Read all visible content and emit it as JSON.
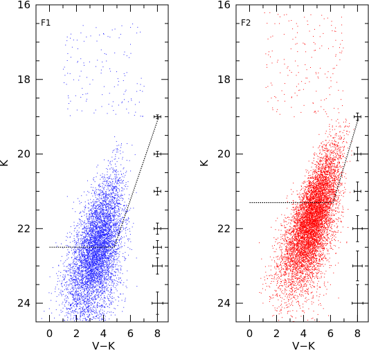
{
  "chart_data": [
    {
      "type": "scatter",
      "panel_label": "F1",
      "xlabel": "V−K",
      "ylabel": "K",
      "xlim": [
        -1.0,
        8.8
      ],
      "ylim": [
        16.0,
        24.5
      ],
      "y_inverted": true,
      "xticks": [
        0,
        2,
        4,
        6,
        8
      ],
      "yticks": [
        16,
        18,
        20,
        22,
        24
      ],
      "grid": false,
      "point_color": "#2020ff",
      "point_density": {
        "approx_points": 6000,
        "bulk_center": {
          "x": 3.8,
          "y": 22.6
        },
        "ridge": [
          {
            "y": 19.0,
            "x": 6.0
          },
          {
            "y": 20.0,
            "x": 5.3
          },
          {
            "y": 21.0,
            "x": 4.6
          },
          {
            "y": 22.0,
            "x": 4.0
          },
          {
            "y": 23.0,
            "x": 3.4
          },
          {
            "y": 24.0,
            "x": 2.9
          }
        ],
        "sparse_bright_stars_y_range": [
          16.5,
          19.0
        ]
      },
      "limit_line": {
        "style": "dotted",
        "points": [
          {
            "x": 0.0,
            "y": 22.5
          },
          {
            "x": 4.8,
            "y": 22.5
          },
          {
            "x": 8.1,
            "y": 19.0
          }
        ]
      },
      "error_bars": [
        {
          "x": 8.0,
          "y": 19.0,
          "xerr": 0.25,
          "yerr": 0.05
        },
        {
          "x": 8.0,
          "y": 20.0,
          "xerr": 0.25,
          "yerr": 0.07
        },
        {
          "x": 8.0,
          "y": 21.0,
          "xerr": 0.25,
          "yerr": 0.1
        },
        {
          "x": 8.0,
          "y": 22.0,
          "xerr": 0.25,
          "yerr": 0.15
        },
        {
          "x": 8.0,
          "y": 22.5,
          "xerr": 0.3,
          "yerr": 0.18
        },
        {
          "x": 8.0,
          "y": 23.0,
          "xerr": 0.35,
          "yerr": 0.22
        },
        {
          "x": 8.0,
          "y": 24.0,
          "xerr": 0.4,
          "yerr": 0.3
        }
      ]
    },
    {
      "type": "scatter",
      "panel_label": "F2",
      "xlabel": "V−K",
      "ylabel": "K",
      "xlim": [
        -1.0,
        8.8
      ],
      "ylim": [
        16.0,
        24.5
      ],
      "y_inverted": true,
      "xticks": [
        0,
        2,
        4,
        6,
        8
      ],
      "yticks": [
        16,
        18,
        20,
        22,
        24
      ],
      "grid": false,
      "point_color": "#ff0000",
      "point_density": {
        "approx_points": 8000,
        "bulk_center": {
          "x": 4.6,
          "y": 21.8
        },
        "ridge": [
          {
            "y": 19.0,
            "x": 7.0
          },
          {
            "y": 20.0,
            "x": 6.2
          },
          {
            "y": 21.0,
            "x": 5.4
          },
          {
            "y": 22.0,
            "x": 4.6
          },
          {
            "y": 23.0,
            "x": 3.9
          },
          {
            "y": 24.0,
            "x": 3.4
          }
        ],
        "sparse_bright_stars_y_range": [
          16.2,
          19.0
        ]
      },
      "limit_line": {
        "style": "dotted",
        "points": [
          {
            "x": 0.0,
            "y": 21.3
          },
          {
            "x": 6.2,
            "y": 21.3
          },
          {
            "x": 8.1,
            "y": 19.0
          }
        ]
      },
      "error_bars": [
        {
          "x": 8.0,
          "y": 19.0,
          "xerr": 0.25,
          "yerr": 0.1
        },
        {
          "x": 8.0,
          "y": 20.0,
          "xerr": 0.25,
          "yerr": 0.18
        },
        {
          "x": 8.0,
          "y": 21.0,
          "xerr": 0.25,
          "yerr": 0.25
        },
        {
          "x": 8.0,
          "y": 22.0,
          "xerr": 0.35,
          "yerr": 0.35
        },
        {
          "x": 8.0,
          "y": 23.0,
          "xerr": 0.35,
          "yerr": 0.4
        },
        {
          "x": 8.0,
          "y": 24.0,
          "xerr": 0.4,
          "yerr": 0.5
        }
      ]
    }
  ]
}
